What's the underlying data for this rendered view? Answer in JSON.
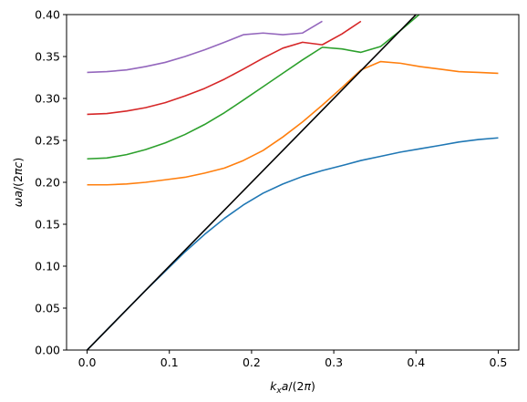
{
  "chart_data": {
    "type": "line",
    "title": "",
    "xlabel_parts": [
      {
        "text": "k",
        "style": "italic"
      },
      {
        "text": "x",
        "style": "sub-italic"
      },
      {
        "text": "a",
        "style": "italic"
      },
      {
        "text": "/(2",
        "style": "normal"
      },
      {
        "text": "π",
        "style": "italic"
      },
      {
        "text": ")",
        "style": "normal"
      }
    ],
    "ylabel_parts": [
      {
        "text": "ωa",
        "style": "italic"
      },
      {
        "text": "/(2",
        "style": "normal"
      },
      {
        "text": "πc",
        "style": "italic"
      },
      {
        "text": ")",
        "style": "normal"
      }
    ],
    "xlim": [
      -0.025,
      0.525
    ],
    "ylim": [
      0.0,
      0.4
    ],
    "xticks": [
      0.0,
      0.1,
      0.2,
      0.3,
      0.4,
      0.5
    ],
    "xtick_labels": [
      "0.0",
      "0.1",
      "0.2",
      "0.3",
      "0.4",
      "0.5"
    ],
    "yticks": [
      0.0,
      0.05,
      0.1,
      0.15,
      0.2,
      0.25,
      0.3,
      0.35,
      0.4
    ],
    "ytick_labels": [
      "0.00",
      "0.05",
      "0.10",
      "0.15",
      "0.20",
      "0.25",
      "0.30",
      "0.35",
      "0.40"
    ],
    "grid": false,
    "legend": "none",
    "series": [
      {
        "color": "#1f77b4",
        "x": [
          0.0,
          0.024,
          0.048,
          0.071,
          0.095,
          0.119,
          0.143,
          0.167,
          0.19,
          0.214,
          0.238,
          0.262,
          0.286,
          0.31,
          0.333,
          0.357,
          0.381,
          0.405,
          0.429,
          0.452,
          0.476,
          0.5
        ],
        "y": [
          0.0,
          0.024,
          0.048,
          0.071,
          0.094,
          0.117,
          0.138,
          0.157,
          0.173,
          0.187,
          0.198,
          0.207,
          0.214,
          0.22,
          0.226,
          0.231,
          0.236,
          0.24,
          0.244,
          0.248,
          0.251,
          0.253
        ]
      },
      {
        "color": "#ff7f0e",
        "x": [
          0.0,
          0.024,
          0.048,
          0.071,
          0.095,
          0.119,
          0.143,
          0.167,
          0.19,
          0.214,
          0.238,
          0.262,
          0.286,
          0.31,
          0.333,
          0.357,
          0.381,
          0.405,
          0.429,
          0.452,
          0.476,
          0.5
        ],
        "y": [
          0.197,
          0.197,
          0.198,
          0.2,
          0.203,
          0.206,
          0.211,
          0.217,
          0.226,
          0.238,
          0.254,
          0.272,
          0.292,
          0.313,
          0.334,
          0.344,
          0.342,
          0.338,
          0.335,
          0.332,
          0.331,
          0.33
        ]
      },
      {
        "color": "#2ca02c",
        "x": [
          0.0,
          0.024,
          0.048,
          0.071,
          0.095,
          0.119,
          0.143,
          0.167,
          0.19,
          0.214,
          0.238,
          0.262,
          0.286,
          0.31,
          0.333,
          0.357,
          0.381,
          0.405
        ],
        "y": [
          0.228,
          0.229,
          0.233,
          0.239,
          0.247,
          0.257,
          0.269,
          0.283,
          0.298,
          0.314,
          0.33,
          0.346,
          0.361,
          0.359,
          0.355,
          0.362,
          0.381,
          0.401
        ]
      },
      {
        "color": "#d62728",
        "x": [
          0.0,
          0.024,
          0.048,
          0.071,
          0.095,
          0.119,
          0.143,
          0.167,
          0.19,
          0.214,
          0.238,
          0.262,
          0.286,
          0.31,
          0.333
        ],
        "y": [
          0.281,
          0.282,
          0.285,
          0.289,
          0.295,
          0.303,
          0.312,
          0.323,
          0.335,
          0.348,
          0.36,
          0.367,
          0.364,
          0.377,
          0.392
        ]
      },
      {
        "color": "#9467bd",
        "x": [
          0.0,
          0.024,
          0.048,
          0.071,
          0.095,
          0.119,
          0.143,
          0.167,
          0.19,
          0.214,
          0.238,
          0.262,
          0.286
        ],
        "y": [
          0.331,
          0.332,
          0.334,
          0.338,
          0.343,
          0.35,
          0.358,
          0.367,
          0.376,
          0.378,
          0.376,
          0.378,
          0.392
        ]
      },
      {
        "color": "#000000",
        "x": [
          0.0,
          0.4
        ],
        "y": [
          0.0,
          0.4
        ]
      }
    ]
  }
}
